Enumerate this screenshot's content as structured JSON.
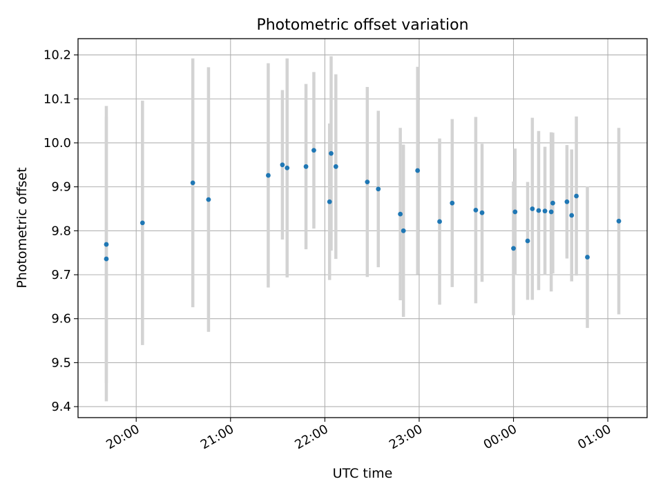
{
  "chart_data": {
    "type": "scatter",
    "title": "Photometric offset variation",
    "xlabel": "UTC time",
    "ylabel": "Photometric offset",
    "xlim": [
      "2023-01-01 19:23",
      "2023-01-02 01:25"
    ],
    "ylim": [
      9.375,
      10.237
    ],
    "x_ticks": [
      {
        "time": "2023-01-01 20:00",
        "label": "20:00"
      },
      {
        "time": "2023-01-01 21:00",
        "label": "21:00"
      },
      {
        "time": "2023-01-01 22:00",
        "label": "22:00"
      },
      {
        "time": "2023-01-01 23:00",
        "label": "23:00"
      },
      {
        "time": "2023-01-02 00:00",
        "label": "00:00"
      },
      {
        "time": "2023-01-02 01:00",
        "label": "01:00"
      }
    ],
    "y_ticks": [
      {
        "value": 9.4,
        "label": "9.4"
      },
      {
        "value": 9.5,
        "label": "9.5"
      },
      {
        "value": 9.6,
        "label": "9.6"
      },
      {
        "value": 9.7,
        "label": "9.7"
      },
      {
        "value": 9.8,
        "label": "9.8"
      },
      {
        "value": 9.9,
        "label": "9.9"
      },
      {
        "value": 10.0,
        "label": "10.0"
      },
      {
        "value": 10.1,
        "label": "10.1"
      },
      {
        "value": 10.2,
        "label": "10.2"
      }
    ],
    "grid": true,
    "point_color": "#1f77b4",
    "errorbar_color": "#d3d3d3",
    "points": [
      {
        "x": "2023-01-01 19:41",
        "y": 9.736,
        "err": 0.324
      },
      {
        "x": "2023-01-01 19:41",
        "y": 9.769,
        "err": 0.315
      },
      {
        "x": "2023-01-01 20:04",
        "y": 9.818,
        "err": 0.278
      },
      {
        "x": "2023-01-01 20:36",
        "y": 9.909,
        "err": 0.283
      },
      {
        "x": "2023-01-01 20:46",
        "y": 9.871,
        "err": 0.301
      },
      {
        "x": "2023-01-01 21:24",
        "y": 9.926,
        "err": 0.255
      },
      {
        "x": "2023-01-01 21:33",
        "y": 9.95,
        "err": 0.17
      },
      {
        "x": "2023-01-01 21:36",
        "y": 9.943,
        "err": 0.249
      },
      {
        "x": "2023-01-01 21:48",
        "y": 9.946,
        "err": 0.188
      },
      {
        "x": "2023-01-01 21:53",
        "y": 9.983,
        "err": 0.178
      },
      {
        "x": "2023-01-01 22:03",
        "y": 9.866,
        "err": 0.178
      },
      {
        "x": "2023-01-01 22:04",
        "y": 9.976,
        "err": 0.221
      },
      {
        "x": "2023-01-01 22:07",
        "y": 9.946,
        "err": 0.21
      },
      {
        "x": "2023-01-01 22:27",
        "y": 9.911,
        "err": 0.216
      },
      {
        "x": "2023-01-01 22:34",
        "y": 9.895,
        "err": 0.178
      },
      {
        "x": "2023-01-01 22:48",
        "y": 9.838,
        "err": 0.196
      },
      {
        "x": "2023-01-01 22:50",
        "y": 9.8,
        "err": 0.196
      },
      {
        "x": "2023-01-01 22:59",
        "y": 9.937,
        "err": 0.236
      },
      {
        "x": "2023-01-01 23:13",
        "y": 9.821,
        "err": 0.189
      },
      {
        "x": "2023-01-01 23:21",
        "y": 9.863,
        "err": 0.191
      },
      {
        "x": "2023-01-01 23:36",
        "y": 9.847,
        "err": 0.212
      },
      {
        "x": "2023-01-01 23:40",
        "y": 9.841,
        "err": 0.157
      },
      {
        "x": "2023-01-02 00:00",
        "y": 9.76,
        "err": 0.152
      },
      {
        "x": "2023-01-02 00:01",
        "y": 9.843,
        "err": 0.144
      },
      {
        "x": "2023-01-02 00:09",
        "y": 9.777,
        "err": 0.134
      },
      {
        "x": "2023-01-02 00:12",
        "y": 9.85,
        "err": 0.207
      },
      {
        "x": "2023-01-02 00:16",
        "y": 9.846,
        "err": 0.181
      },
      {
        "x": "2023-01-02 00:20",
        "y": 9.845,
        "err": 0.146
      },
      {
        "x": "2023-01-02 00:24",
        "y": 9.843,
        "err": 0.181
      },
      {
        "x": "2023-01-02 00:25",
        "y": 9.863,
        "err": 0.16
      },
      {
        "x": "2023-01-02 00:34",
        "y": 9.866,
        "err": 0.129
      },
      {
        "x": "2023-01-02 00:37",
        "y": 9.835,
        "err": 0.15
      },
      {
        "x": "2023-01-02 00:40",
        "y": 9.879,
        "err": 0.181
      },
      {
        "x": "2023-01-02 00:47",
        "y": 9.74,
        "err": 0.161
      },
      {
        "x": "2023-01-02 01:07",
        "y": 9.822,
        "err": 0.212
      }
    ]
  }
}
